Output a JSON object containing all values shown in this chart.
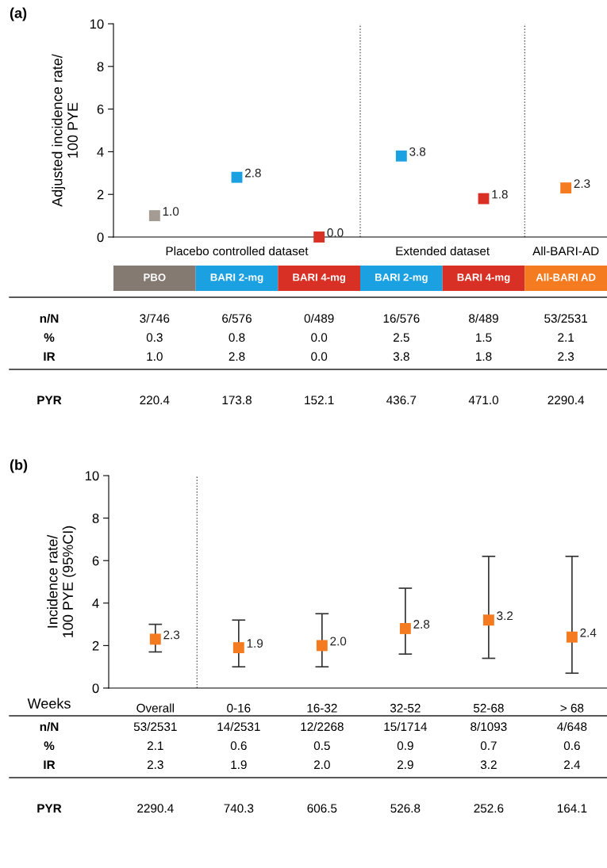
{
  "chart_data": [
    {
      "type": "scatter",
      "title": "(a)",
      "ylabel": "Adjusted incidence rate/\n100 PYE",
      "categories": [
        "PBO",
        "BARI 2-mg",
        "BARI 4-mg",
        "BARI 2-mg",
        "BARI 4-mg",
        "All-BARI AD"
      ],
      "values": [
        1.0,
        2.8,
        0.0,
        3.8,
        1.8,
        2.3
      ],
      "colors": [
        "#a39b94",
        "#1ba1e2",
        "#d93025",
        "#1ba1e2",
        "#d93025",
        "#f47b20"
      ],
      "value_labels": [
        "1.0",
        "2.8",
        "0.0",
        "3.8",
        "1.8",
        "2.3"
      ],
      "marker": "square",
      "ylim": [
        0,
        10
      ],
      "yticks": [
        0,
        2,
        4,
        6,
        8,
        10
      ],
      "grid": false,
      "annotations": [
        "Placebo controlled dataset",
        "Extended dataset",
        "All-BARI-AD",
        "n/N",
        "3/746",
        "6/576",
        "0/489",
        "16/576",
        "8/489",
        "53/2531",
        "%",
        "0.3",
        "0.8",
        "0.0",
        "2.5",
        "1.5",
        "2.1",
        "IR",
        "1.0",
        "2.8",
        "0.0",
        "3.8",
        "1.8",
        "2.3",
        "PYR",
        "220.4",
        "173.8",
        "152.1",
        "436.7",
        "471.0",
        "2290.4"
      ]
    },
    {
      "type": "scatter",
      "title": "(b)",
      "ylabel": "Incidence rate/\n100 PYE (95%CI)",
      "xlabel": "Weeks",
      "categories": [
        "Overall",
        "0-16",
        "16-32",
        "32-52",
        "52-68",
        "> 68"
      ],
      "values": [
        2.3,
        1.9,
        2.0,
        2.8,
        3.2,
        2.4
      ],
      "errors": [
        [
          1.7,
          3.0
        ],
        [
          1.0,
          3.2
        ],
        [
          1.0,
          3.5
        ],
        [
          1.6,
          4.7
        ],
        [
          1.4,
          6.2
        ],
        [
          0.7,
          6.2
        ]
      ],
      "colors": [
        "#f47b20",
        "#f47b20",
        "#f47b20",
        "#f47b20",
        "#f47b20",
        "#f47b20"
      ],
      "value_labels": [
        "2.3",
        "1.9",
        "2.0",
        "2.8",
        "3.2",
        "2.4"
      ],
      "marker": "square",
      "ylim": [
        0,
        10
      ],
      "yticks": [
        0,
        2,
        4,
        6,
        8,
        10
      ],
      "grid": false,
      "annotations": [
        "n/N",
        "53/2531",
        "14/2531",
        "12/2268",
        "15/1714",
        "8/1093",
        "4/648",
        "%",
        "2.1",
        "0.6",
        "0.5",
        "0.9",
        "0.7",
        "0.6",
        "IR",
        "2.3",
        "1.9",
        "2.0",
        "2.9",
        "3.2",
        "2.4",
        "PYR",
        "2290.4",
        "740.3",
        "606.5",
        "526.8",
        "252.6",
        "164.1"
      ]
    }
  ]
}
